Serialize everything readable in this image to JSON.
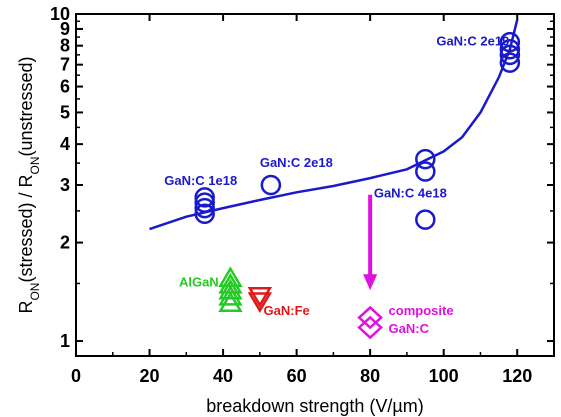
{
  "chart_data": {
    "type": "scatter",
    "title": "",
    "xlabel": "breakdown strength (V/µm)",
    "ylabel": {
      "parts": [
        {
          "t": "R",
          "sub": false
        },
        {
          "t": "ON",
          "sub": true
        },
        {
          "t": "(stressed) / R",
          "sub": false
        },
        {
          "t": "ON",
          "sub": true
        },
        {
          "t": "(unstressed)",
          "sub": false
        }
      ]
    },
    "xlim": [
      0,
      130
    ],
    "ylim": [
      0.9,
      10
    ],
    "yscale": "log",
    "xticks": [
      0,
      20,
      40,
      60,
      80,
      100,
      120
    ],
    "yticks": [
      1,
      2,
      3,
      4,
      5,
      6,
      7,
      8,
      9,
      10
    ],
    "grid": false,
    "series": [
      {
        "name": "GaN:C",
        "marker": "circle",
        "color": "#1a1acc",
        "points": [
          {
            "x": 35,
            "y": 2.45
          },
          {
            "x": 35,
            "y": 2.55
          },
          {
            "x": 35,
            "y": 2.65
          },
          {
            "x": 35,
            "y": 2.75
          },
          {
            "x": 53,
            "y": 3.0
          },
          {
            "x": 95,
            "y": 2.35
          },
          {
            "x": 95,
            "y": 3.3
          },
          {
            "x": 95,
            "y": 3.6
          },
          {
            "x": 118,
            "y": 7.1
          },
          {
            "x": 118,
            "y": 7.5
          },
          {
            "x": 118,
            "y": 7.8
          },
          {
            "x": 118,
            "y": 8.2
          }
        ]
      },
      {
        "name": "AlGaN",
        "marker": "triangle-up",
        "color": "#22cc22",
        "points": [
          {
            "x": 42,
            "y": 1.3
          },
          {
            "x": 42,
            "y": 1.36
          },
          {
            "x": 42,
            "y": 1.42
          },
          {
            "x": 42,
            "y": 1.48
          },
          {
            "x": 42,
            "y": 1.55
          }
        ]
      },
      {
        "name": "GaN:Fe",
        "marker": "triangle-down",
        "color": "#e01818",
        "points": [
          {
            "x": 50,
            "y": 1.33
          },
          {
            "x": 50,
            "y": 1.38
          }
        ]
      },
      {
        "name": "composite GaN:C",
        "marker": "diamond",
        "color": "#e010e0",
        "points": [
          {
            "x": 80,
            "y": 1.1
          },
          {
            "x": 80,
            "y": 1.18
          }
        ]
      }
    ],
    "fit_line": {
      "color": "#1a1acc",
      "points": [
        {
          "x": 20,
          "y": 2.2
        },
        {
          "x": 30,
          "y": 2.4
        },
        {
          "x": 40,
          "y": 2.55
        },
        {
          "x": 50,
          "y": 2.7
        },
        {
          "x": 60,
          "y": 2.85
        },
        {
          "x": 70,
          "y": 2.98
        },
        {
          "x": 80,
          "y": 3.15
        },
        {
          "x": 90,
          "y": 3.35
        },
        {
          "x": 100,
          "y": 3.8
        },
        {
          "x": 105,
          "y": 4.2
        },
        {
          "x": 110,
          "y": 5.0
        },
        {
          "x": 115,
          "y": 6.4
        },
        {
          "x": 118,
          "y": 7.8
        },
        {
          "x": 120,
          "y": 9.6
        }
      ]
    },
    "annotations": [
      {
        "text": "GaN:C 1e18",
        "x": 24,
        "y": 3.0,
        "color": "#1a1acc"
      },
      {
        "text": "GaN:C 2e18",
        "x": 50,
        "y": 3.4,
        "color": "#1a1acc"
      },
      {
        "text": "GaN:C 4e18",
        "x": 81,
        "y": 2.75,
        "color": "#1a1acc"
      },
      {
        "text": "GaN:C 2e19",
        "x": 98,
        "y": 8.0,
        "color": "#1a1acc"
      },
      {
        "text": "AlGaN",
        "x": 28,
        "y": 1.47,
        "color": "#22cc22"
      },
      {
        "text": "GaN:Fe",
        "x": 51,
        "y": 1.2,
        "color": "#e01818"
      },
      {
        "text": "composite",
        "x": 85,
        "y": 1.2,
        "color": "#e010e0"
      },
      {
        "text": "GaN:C",
        "x": 85,
        "y": 1.06,
        "color": "#e010e0"
      }
    ],
    "arrow": {
      "x": 80,
      "y_from": 2.8,
      "y_to": 1.43,
      "color": "#e010e0"
    }
  }
}
